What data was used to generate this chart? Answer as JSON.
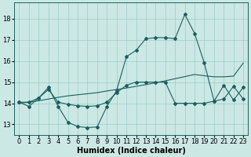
{
  "bg_color": "#cce8e4",
  "grid_color": "#99ccc8",
  "line_color": "#1a6060",
  "xlabel": "Humidex (Indice chaleur)",
  "xlim": [
    -0.5,
    23.5
  ],
  "ylim": [
    12.5,
    18.75
  ],
  "yticks": [
    13,
    14,
    15,
    16,
    17,
    18
  ],
  "xticks": [
    0,
    1,
    2,
    3,
    4,
    5,
    6,
    7,
    8,
    9,
    10,
    11,
    12,
    13,
    14,
    15,
    16,
    17,
    18,
    19,
    20,
    21,
    22,
    23
  ],
  "curve1_x": [
    0,
    1,
    2,
    3,
    4,
    5,
    6,
    7,
    8,
    9,
    10,
    11,
    12,
    13,
    14,
    15,
    16,
    17,
    18,
    19,
    20,
    21,
    22,
    23
  ],
  "curve1_y": [
    14.05,
    13.85,
    14.25,
    14.75,
    13.85,
    13.1,
    12.9,
    12.85,
    12.88,
    13.85,
    14.6,
    16.2,
    16.5,
    17.05,
    17.1,
    17.1,
    17.05,
    18.2,
    17.3,
    15.9,
    14.1,
    14.85,
    14.15,
    14.75
  ],
  "curve2_x": [
    0,
    1,
    2,
    3,
    4,
    5,
    6,
    7,
    8,
    9,
    10,
    11,
    12,
    13,
    14,
    15,
    16,
    17,
    18,
    19,
    20,
    21,
    22,
    23
  ],
  "curve2_y": [
    14.0,
    14.05,
    14.12,
    14.2,
    14.28,
    14.35,
    14.4,
    14.45,
    14.5,
    14.58,
    14.65,
    14.72,
    14.8,
    14.88,
    14.97,
    15.06,
    15.16,
    15.26,
    15.36,
    15.3,
    15.25,
    15.25,
    15.28,
    15.9
  ],
  "curve3_x": [
    0,
    1,
    2,
    3,
    4,
    5,
    6,
    7,
    8,
    9,
    10,
    11,
    12,
    13,
    14,
    15,
    16,
    17,
    18,
    19,
    20,
    21,
    22,
    23
  ],
  "curve3_y": [
    14.05,
    14.05,
    14.25,
    14.65,
    14.05,
    13.95,
    13.88,
    13.85,
    13.88,
    14.05,
    14.5,
    14.85,
    15.0,
    15.0,
    15.0,
    15.0,
    14.0,
    14.0,
    14.0,
    14.0,
    14.1,
    14.2,
    14.8,
    14.2
  ],
  "marker": "D",
  "markersize": 2.0,
  "linewidth": 0.8,
  "xlabel_fontsize": 7,
  "tick_fontsize": 6
}
